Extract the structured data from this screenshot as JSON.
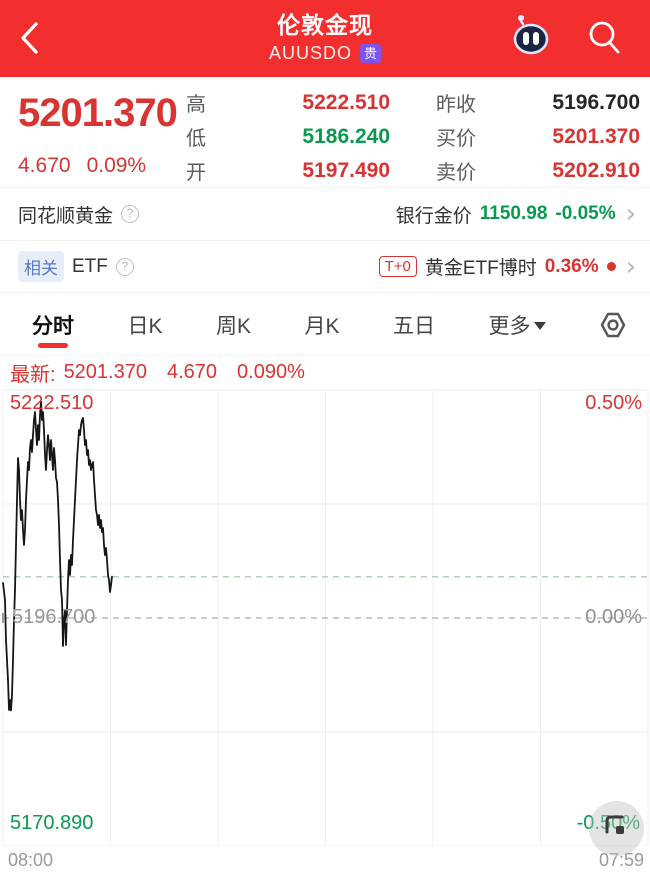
{
  "header": {
    "title": "伦敦金现",
    "symbol": "AUUSDO",
    "symbol_badge": "贵"
  },
  "quote": {
    "price": "5201.370",
    "change": "4.670",
    "change_pct": "0.09%",
    "stats_left": [
      {
        "label": "高",
        "value": "5222.510",
        "color": "red"
      },
      {
        "label": "低",
        "value": "5186.240",
        "color": "green"
      },
      {
        "label": "开",
        "value": "5197.490",
        "color": "red"
      }
    ],
    "stats_right": [
      {
        "label": "昨收",
        "value": "5196.700",
        "color": "dark"
      },
      {
        "label": "买价",
        "value": "5201.370",
        "color": "red"
      },
      {
        "label": "卖价",
        "value": "5202.910",
        "color": "red"
      }
    ]
  },
  "gold_row": {
    "title": "同花顺黄金",
    "right_label": "银行金价",
    "right_value": "1150.98",
    "right_change": "-0.05%"
  },
  "etf_row": {
    "badge": "相关",
    "title": "ETF",
    "tag": "T+0",
    "name": "黄金ETF博时",
    "change": "0.36%"
  },
  "tabs": {
    "items": [
      "分时",
      "日K",
      "周K",
      "月K",
      "五日"
    ],
    "more_label": "更多",
    "active_index": 0
  },
  "latest": {
    "label": "最新:",
    "price": "5201.370",
    "change": "4.670",
    "pct": "0.090%"
  },
  "colors": {
    "header_red": "#f22e2e",
    "text_red": "#d93431",
    "text_green": "#089a4e",
    "axis_gray": "#9a9a9a"
  },
  "chart_data": {
    "type": "line",
    "title": "分时 (intraday price)",
    "x_start_label": "08:00",
    "x_end_label": "07:59",
    "y_axis": {
      "top": {
        "price": "5222.510",
        "pct": "0.50%"
      },
      "mid": {
        "price": "5196.700",
        "pct": "0.00%"
      },
      "bottom": {
        "price": "5170.890",
        "pct": "-0.50%"
      }
    },
    "ylim": [
      5170.89,
      5222.51
    ],
    "prev_close": 5196.7,
    "current_price": 5201.37,
    "grid_columns": 6,
    "grid_on": true,
    "line_color": "#161616",
    "prev_close_line_color": "#b8b8b8",
    "current_line_color": "#b8cfba",
    "points": [
      [
        0.0,
        5200.66
      ],
      [
        0.0031,
        5198.74
      ],
      [
        0.0047,
        5194.21
      ],
      [
        0.0078,
        5189.68
      ],
      [
        0.0093,
        5186.29
      ],
      [
        0.0109,
        5187.42
      ],
      [
        0.0124,
        5186.24
      ],
      [
        0.014,
        5187.99
      ],
      [
        0.0155,
        5191.95
      ],
      [
        0.0171,
        5196.47
      ],
      [
        0.0186,
        5199.87
      ],
      [
        0.0202,
        5204.96
      ],
      [
        0.0217,
        5210.06
      ],
      [
        0.0233,
        5214.81
      ],
      [
        0.0248,
        5213.45
      ],
      [
        0.0264,
        5210.06
      ],
      [
        0.0279,
        5207.79
      ],
      [
        0.0295,
        5208.92
      ],
      [
        0.031,
        5206.66
      ],
      [
        0.0326,
        5204.96
      ],
      [
        0.0341,
        5206.66
      ],
      [
        0.0357,
        5210.06
      ],
      [
        0.0372,
        5212.32
      ],
      [
        0.0388,
        5214.36
      ],
      [
        0.0403,
        5213.45
      ],
      [
        0.0419,
        5215.94
      ],
      [
        0.0434,
        5216.85
      ],
      [
        0.045,
        5215.49
      ],
      [
        0.0465,
        5217.41
      ],
      [
        0.0481,
        5219.11
      ],
      [
        0.0496,
        5220.02
      ],
      [
        0.0512,
        5217.98
      ],
      [
        0.0527,
        5216.28
      ],
      [
        0.0543,
        5218.54
      ],
      [
        0.0558,
        5216.85
      ],
      [
        0.0574,
        5219.68
      ],
      [
        0.0589,
        5221.2
      ],
      [
        0.0605,
        5219.11
      ],
      [
        0.062,
        5220.02
      ],
      [
        0.0636,
        5217.98
      ],
      [
        0.0651,
        5215.15
      ],
      [
        0.0667,
        5213.45
      ],
      [
        0.0682,
        5215.72
      ],
      [
        0.0698,
        5217.41
      ],
      [
        0.0713,
        5216.28
      ],
      [
        0.0729,
        5214.58
      ],
      [
        0.0744,
        5216.85
      ],
      [
        0.076,
        5215.15
      ],
      [
        0.0775,
        5213.45
      ],
      [
        0.0791,
        5215.94
      ],
      [
        0.0806,
        5214.58
      ],
      [
        0.0822,
        5212.55
      ],
      [
        0.0837,
        5212.09
      ],
      [
        0.0853,
        5210.06
      ],
      [
        0.0868,
        5207.23
      ],
      [
        0.0884,
        5203.27
      ],
      [
        0.0899,
        5199.87
      ],
      [
        0.0915,
        5198.74
      ],
      [
        0.093,
        5193.53
      ],
      [
        0.0946,
        5196.47
      ],
      [
        0.0961,
        5197.61
      ],
      [
        0.0977,
        5193.64
      ],
      [
        0.0992,
        5197.61
      ],
      [
        0.1008,
        5201.0
      ],
      [
        0.1023,
        5203.27
      ],
      [
        0.1039,
        5201.57
      ],
      [
        0.1054,
        5203.83
      ],
      [
        0.107,
        5202.7
      ],
      [
        0.1085,
        5205.53
      ],
      [
        0.1101,
        5207.79
      ],
      [
        0.1116,
        5210.06
      ],
      [
        0.1132,
        5212.32
      ],
      [
        0.1147,
        5214.58
      ],
      [
        0.1163,
        5216.28
      ],
      [
        0.1178,
        5217.98
      ],
      [
        0.1194,
        5217.41
      ],
      [
        0.1209,
        5218.54
      ],
      [
        0.1225,
        5219.11
      ],
      [
        0.124,
        5219.34
      ],
      [
        0.1256,
        5217.98
      ],
      [
        0.1271,
        5216.28
      ],
      [
        0.1287,
        5216.85
      ],
      [
        0.1302,
        5215.15
      ],
      [
        0.1318,
        5215.72
      ],
      [
        0.1333,
        5214.02
      ],
      [
        0.1349,
        5214.58
      ],
      [
        0.1364,
        5213.45
      ],
      [
        0.138,
        5214.02
      ],
      [
        0.1395,
        5214.36
      ],
      [
        0.1411,
        5212.32
      ],
      [
        0.1426,
        5210.62
      ],
      [
        0.1442,
        5208.92
      ],
      [
        0.1457,
        5208.36
      ],
      [
        0.1473,
        5207.23
      ],
      [
        0.1488,
        5208.36
      ],
      [
        0.1504,
        5206.89
      ],
      [
        0.1519,
        5207.79
      ],
      [
        0.1535,
        5206.43
      ],
      [
        0.155,
        5206.89
      ],
      [
        0.1566,
        5204.96
      ],
      [
        0.1581,
        5203.83
      ],
      [
        0.1597,
        5204.62
      ],
      [
        0.1612,
        5203.27
      ],
      [
        0.1628,
        5201.57
      ],
      [
        0.1643,
        5201.0
      ],
      [
        0.1659,
        5199.64
      ],
      [
        0.1674,
        5200.43
      ],
      [
        0.169,
        5201.37
      ]
    ]
  }
}
